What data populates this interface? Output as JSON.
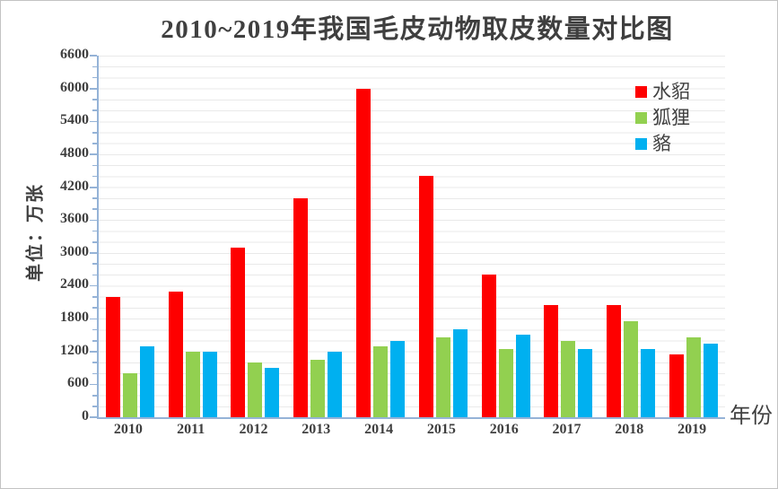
{
  "chart_data": {
    "type": "bar",
    "title": "2010~2019年我国毛皮动物取皮数量对比图",
    "xlabel": "年份",
    "ylabel": "单位：万张",
    "categories": [
      "2010",
      "2011",
      "2012",
      "2013",
      "2014",
      "2015",
      "2016",
      "2017",
      "2018",
      "2019"
    ],
    "series": [
      {
        "key": "mink",
        "name": "水貂",
        "color": "#fe0000",
        "values": [
          2200,
          2300,
          3100,
          4000,
          6000,
          4400,
          2600,
          2050,
          2050,
          1150
        ]
      },
      {
        "key": "fox",
        "name": "狐狸",
        "color": "#92d050",
        "values": [
          800,
          1200,
          1000,
          1050,
          1300,
          1450,
          1250,
          1400,
          1750,
          1450
        ]
      },
      {
        "key": "raccoon-dog",
        "name": "貉",
        "color": "#00b0f0",
        "values": [
          1300,
          1200,
          900,
          1200,
          1400,
          1600,
          1500,
          1250,
          1250,
          1350
        ]
      }
    ],
    "ylim": [
      0,
      6600
    ],
    "ytick_step": 600,
    "minor_tick_step": 200,
    "yticks": [
      0,
      600,
      1200,
      1800,
      2400,
      3000,
      3600,
      4200,
      4800,
      5400,
      6000,
      6600
    ],
    "grid": true,
    "legend_position": "top-right",
    "colors": {
      "axis": "#95b3d7",
      "gridline": "#e9e9e9",
      "text": "#3f3f3f",
      "background": "#ffffff",
      "border": "#c3c3c3"
    }
  }
}
